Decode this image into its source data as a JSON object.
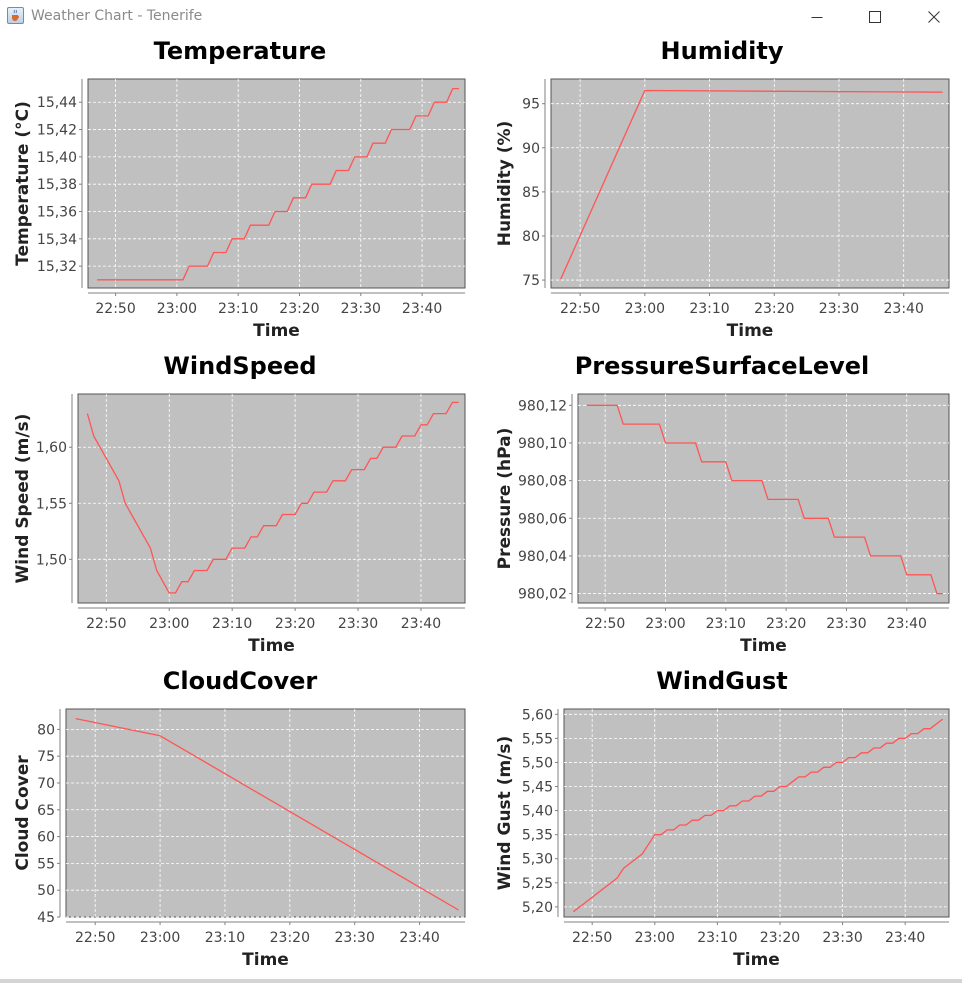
{
  "window": {
    "title": "Weather Chart - Tenerife",
    "minimize_icon": "minimize-icon",
    "maximize_icon": "maximize-icon",
    "close_icon": "close-icon"
  },
  "colors": {
    "plot_background": "#c0c0c0",
    "series_line": "#ff5555",
    "gridline": "#ffffff",
    "axis": "#808080"
  },
  "chart_data": [
    {
      "id": "temperature",
      "type": "line",
      "title": "Temperature",
      "xlabel": "Time",
      "ylabel": "Temperature (°C)",
      "x_tick_labels": [
        "22:50",
        "23:00",
        "23:10",
        "23:20",
        "23:30",
        "23:40"
      ],
      "y_tick_labels": [
        "15,32",
        "15,34",
        "15,36",
        "15,38",
        "15,40",
        "15,42",
        "15,44"
      ],
      "yticks": [
        15.32,
        15.34,
        15.36,
        15.38,
        15.4,
        15.42,
        15.44
      ],
      "xlim": [
        "22:45:30",
        "23:47"
      ],
      "ylim": [
        15.304,
        15.457
      ],
      "grid": true,
      "x": [
        "22:47",
        "23:01",
        "23:02",
        "23:05",
        "23:06",
        "23:08",
        "23:09",
        "23:11",
        "23:12",
        "23:15",
        "23:16",
        "23:18",
        "23:19",
        "23:21",
        "23:22",
        "23:25",
        "23:26",
        "23:28",
        "23:29",
        "23:31",
        "23:32",
        "23:34",
        "23:35",
        "23:38",
        "23:39",
        "23:41",
        "23:42",
        "23:44",
        "23:45",
        "23:46"
      ],
      "series": [
        {
          "values": [
            15.31,
            15.31,
            15.32,
            15.32,
            15.33,
            15.33,
            15.34,
            15.34,
            15.35,
            15.35,
            15.36,
            15.36,
            15.37,
            15.37,
            15.38,
            15.38,
            15.39,
            15.39,
            15.4,
            15.4,
            15.41,
            15.41,
            15.42,
            15.42,
            15.43,
            15.43,
            15.44,
            15.44,
            15.45,
            15.45
          ]
        }
      ]
    },
    {
      "id": "humidity",
      "type": "line",
      "title": "Humidity",
      "xlabel": "Time",
      "ylabel": "Humidity (%)",
      "x_tick_labels": [
        "22:50",
        "23:00",
        "23:10",
        "23:20",
        "23:30",
        "23:40"
      ],
      "y_tick_labels": [
        "75",
        "80",
        "85",
        "90",
        "95"
      ],
      "yticks": [
        75,
        80,
        85,
        90,
        95
      ],
      "xlim": [
        "22:45:30",
        "23:47"
      ],
      "ylim": [
        74.1,
        97.8
      ],
      "grid": true,
      "x": [
        "22:47",
        "23:00",
        "23:46"
      ],
      "series": [
        {
          "values": [
            75.1,
            96.5,
            96.3
          ]
        }
      ]
    },
    {
      "id": "windspeed",
      "type": "line",
      "title": "WindSpeed",
      "xlabel": "Time",
      "ylabel": "Wind Speed (m/s)",
      "x_tick_labels": [
        "22:50",
        "23:00",
        "23:10",
        "23:20",
        "23:30",
        "23:40"
      ],
      "y_tick_labels": [
        "1,50",
        "1,55",
        "1,60"
      ],
      "yticks": [
        1.5,
        1.55,
        1.6
      ],
      "xlim": [
        "22:45:30",
        "23:47"
      ],
      "ylim": [
        1.461,
        1.6475
      ],
      "grid": true,
      "x": [
        "22:47",
        "22:48",
        "22:52",
        "22:53",
        "22:57",
        "22:58",
        "23:00",
        "23:01",
        "23:02",
        "23:03",
        "23:04",
        "23:06",
        "23:07",
        "23:09",
        "23:10",
        "23:12",
        "23:13",
        "23:14",
        "23:15",
        "23:17",
        "23:18",
        "23:20",
        "23:21",
        "23:22",
        "23:23",
        "23:25",
        "23:26",
        "23:28",
        "23:29",
        "23:31",
        "23:32",
        "23:33",
        "23:34",
        "23:36",
        "23:37",
        "23:39",
        "23:40",
        "23:41",
        "23:42",
        "23:44",
        "23:45",
        "23:46"
      ],
      "series": [
        {
          "values": [
            1.63,
            1.61,
            1.57,
            1.55,
            1.51,
            1.49,
            1.47,
            1.47,
            1.48,
            1.48,
            1.49,
            1.49,
            1.5,
            1.5,
            1.51,
            1.51,
            1.52,
            1.52,
            1.53,
            1.53,
            1.54,
            1.54,
            1.55,
            1.55,
            1.56,
            1.56,
            1.57,
            1.57,
            1.58,
            1.58,
            1.59,
            1.59,
            1.6,
            1.6,
            1.61,
            1.61,
            1.62,
            1.62,
            1.63,
            1.63,
            1.64,
            1.64
          ]
        }
      ]
    },
    {
      "id": "pressure",
      "type": "line",
      "title": "PressureSurfaceLevel",
      "xlabel": "Time",
      "ylabel": "Pressure (hPa)",
      "x_tick_labels": [
        "22:50",
        "23:00",
        "23:10",
        "23:20",
        "23:30",
        "23:40"
      ],
      "y_tick_labels": [
        "980,02",
        "980,04",
        "980,06",
        "980,08",
        "980,10",
        "980,12"
      ],
      "yticks": [
        980.02,
        980.04,
        980.06,
        980.08,
        980.1,
        980.12
      ],
      "xlim": [
        "22:45:30",
        "23:47"
      ],
      "ylim": [
        980.015,
        980.126
      ],
      "grid": true,
      "x": [
        "22:47",
        "22:52",
        "22:53",
        "22:59",
        "23:00",
        "23:05",
        "23:06",
        "23:10",
        "23:11",
        "23:16",
        "23:17",
        "23:22",
        "23:23",
        "23:27",
        "23:28",
        "23:33",
        "23:34",
        "23:39",
        "23:40",
        "23:44",
        "23:45",
        "23:46"
      ],
      "series": [
        {
          "values": [
            980.12,
            980.12,
            980.11,
            980.11,
            980.1,
            980.1,
            980.09,
            980.09,
            980.08,
            980.08,
            980.07,
            980.07,
            980.06,
            980.06,
            980.05,
            980.05,
            980.04,
            980.04,
            980.03,
            980.03,
            980.02,
            980.02
          ]
        }
      ]
    },
    {
      "id": "cloudcover",
      "type": "line",
      "title": "CloudCover",
      "xlabel": "Time",
      "ylabel": "Cloud Cover",
      "x_tick_labels": [
        "22:50",
        "23:00",
        "23:10",
        "23:20",
        "23:30",
        "23:40"
      ],
      "y_tick_labels": [
        "45",
        "50",
        "55",
        "60",
        "65",
        "70",
        "75",
        "80"
      ],
      "yticks": [
        45,
        50,
        55,
        60,
        65,
        70,
        75,
        80
      ],
      "xlim": [
        "22:45:30",
        "23:47"
      ],
      "ylim": [
        45.0,
        83.8
      ],
      "grid": true,
      "x": [
        "22:47",
        "23:00",
        "23:46"
      ],
      "series": [
        {
          "values": [
            82.0,
            78.8,
            46.3
          ]
        }
      ]
    },
    {
      "id": "windgust",
      "type": "line",
      "title": "WindGust",
      "xlabel": "Time",
      "ylabel": "Wind Gust (m/s)",
      "x_tick_labels": [
        "22:50",
        "23:00",
        "23:10",
        "23:20",
        "23:30",
        "23:40"
      ],
      "y_tick_labels": [
        "5,20",
        "5,25",
        "5,30",
        "5,35",
        "5,40",
        "5,45",
        "5,50",
        "5,55",
        "5,60"
      ],
      "yticks": [
        5.2,
        5.25,
        5.3,
        5.35,
        5.4,
        5.45,
        5.5,
        5.55,
        5.6
      ],
      "xlim": [
        "22:45:30",
        "23:47"
      ],
      "ylim": [
        5.179,
        5.611
      ],
      "grid": true,
      "x": [
        "22:47",
        "22:49",
        "22:50",
        "22:52",
        "22:54",
        "22:55",
        "22:57",
        "22:58",
        "22:59",
        "23:00",
        "23:01",
        "23:02",
        "23:03",
        "23:04",
        "23:05",
        "23:06",
        "23:07",
        "23:08",
        "23:09",
        "23:10",
        "23:11",
        "23:12",
        "23:13",
        "23:14",
        "23:15",
        "23:16",
        "23:17",
        "23:18",
        "23:19",
        "23:20",
        "23:21",
        "23:22",
        "23:23",
        "23:24",
        "23:25",
        "23:26",
        "23:27",
        "23:28",
        "23:29",
        "23:30",
        "23:31",
        "23:32",
        "23:33",
        "23:34",
        "23:35",
        "23:36",
        "23:37",
        "23:38",
        "23:39",
        "23:40",
        "23:41",
        "23:42",
        "23:43",
        "23:44",
        "23:46"
      ],
      "series": [
        {
          "values": [
            5.19,
            5.21,
            5.22,
            5.24,
            5.26,
            5.28,
            5.3,
            5.31,
            5.33,
            5.35,
            5.35,
            5.36,
            5.36,
            5.37,
            5.37,
            5.38,
            5.38,
            5.39,
            5.39,
            5.4,
            5.4,
            5.41,
            5.41,
            5.42,
            5.42,
            5.43,
            5.43,
            5.44,
            5.44,
            5.45,
            5.45,
            5.46,
            5.47,
            5.47,
            5.48,
            5.48,
            5.49,
            5.49,
            5.5,
            5.5,
            5.51,
            5.51,
            5.52,
            5.52,
            5.53,
            5.53,
            5.54,
            5.54,
            5.55,
            5.55,
            5.56,
            5.56,
            5.57,
            5.57,
            5.59
          ]
        }
      ]
    }
  ]
}
